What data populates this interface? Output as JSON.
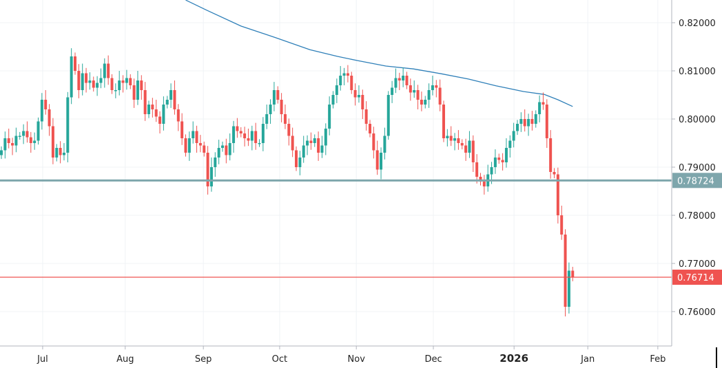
{
  "chart_data": {
    "type": "candlestick",
    "title": "",
    "price_ticks": [
      "0.82000",
      "0.81000",
      "0.80000",
      "0.79000",
      "0.78000",
      "0.77000",
      "0.76000"
    ],
    "price_tick_values": [
      0.82,
      0.81,
      0.8,
      0.79,
      0.78,
      0.77,
      0.76
    ],
    "ylim": [
      0.7535,
      0.8247
    ],
    "time_ticks": [
      {
        "label": "Jul",
        "bar": 11.2,
        "bold": false
      },
      {
        "label": "Aug",
        "bar": 33.6,
        "bold": false
      },
      {
        "label": "Sep",
        "bar": 54.8,
        "bold": false
      },
      {
        "label": "Oct",
        "bar": 75.5,
        "bold": false
      },
      {
        "label": "Nov",
        "bar": 96.3,
        "bold": false
      },
      {
        "label": "Dec",
        "bar": 117.2,
        "bold": false
      },
      {
        "label": "2026",
        "bar": 139.1,
        "bold": true
      },
      {
        "label": "Jan",
        "bar": 159.1,
        "bold": false
      },
      {
        "label": "Feb",
        "bar": 178.1,
        "bold": false
      }
    ],
    "first_open": 0.7925,
    "closes": [
      0.7935,
      0.796,
      0.795,
      0.7945,
      0.7965,
      0.7965,
      0.7975,
      0.7962,
      0.795,
      0.7955,
      0.7995,
      0.804,
      0.802,
      0.7985,
      0.792,
      0.794,
      0.7925,
      0.793,
      0.8045,
      0.813,
      0.81,
      0.806,
      0.8095,
      0.8075,
      0.808,
      0.8065,
      0.8075,
      0.8085,
      0.8115,
      0.8085,
      0.806,
      0.806,
      0.808,
      0.8075,
      0.8085,
      0.807,
      0.804,
      0.808,
      0.806,
      0.801,
      0.803,
      0.802,
      0.8005,
      0.799,
      0.803,
      0.804,
      0.806,
      0.802,
      0.7995,
      0.796,
      0.793,
      0.796,
      0.7975,
      0.795,
      0.7945,
      0.793,
      0.786,
      0.79,
      0.792,
      0.794,
      0.7945,
      0.7925,
      0.795,
      0.7985,
      0.7975,
      0.797,
      0.796,
      0.7955,
      0.7975,
      0.795,
      0.795,
      0.799,
      0.801,
      0.803,
      0.806,
      0.804,
      0.801,
      0.799,
      0.7965,
      0.7935,
      0.79,
      0.792,
      0.7945,
      0.7955,
      0.795,
      0.796,
      0.793,
      0.7945,
      0.798,
      0.803,
      0.805,
      0.807,
      0.809,
      0.8095,
      0.809,
      0.806,
      0.8045,
      0.805,
      0.802,
      0.799,
      0.797,
      0.7935,
      0.7895,
      0.793,
      0.7965,
      0.805,
      0.8065,
      0.8085,
      0.808,
      0.809,
      0.807,
      0.8055,
      0.806,
      0.804,
      0.803,
      0.804,
      0.806,
      0.807,
      0.8065,
      0.803,
      0.796,
      0.7965,
      0.7955,
      0.796,
      0.795,
      0.7945,
      0.793,
      0.7955,
      0.791,
      0.788,
      0.787,
      0.786,
      0.7885,
      0.79,
      0.792,
      0.7915,
      0.791,
      0.794,
      0.7955,
      0.7975,
      0.799,
      0.8,
      0.7985,
      0.8,
      0.799,
      0.801,
      0.8035,
      0.803,
      0.796,
      0.789,
      0.7885,
      0.78,
      0.776,
      0.761,
      0.7685,
      0.7671
    ],
    "moving_average": {
      "color": "#2e7fb8",
      "points": [
        [
          50,
          0.8247
        ],
        [
          55.7,
          0.8226
        ],
        [
          65,
          0.8193
        ],
        [
          74.4,
          0.8169
        ],
        [
          83.7,
          0.8144
        ],
        [
          91.2,
          0.813
        ],
        [
          96.8,
          0.8121
        ],
        [
          104.3,
          0.811
        ],
        [
          111.8,
          0.8104
        ],
        [
          119.3,
          0.8094
        ],
        [
          126.7,
          0.8083
        ],
        [
          134.2,
          0.8069
        ],
        [
          141.7,
          0.8057
        ],
        [
          147.3,
          0.8051
        ],
        [
          151,
          0.804
        ],
        [
          155,
          0.8026
        ]
      ]
    },
    "horizontal_lines": [
      {
        "value": 0.78724,
        "label": "0.78724",
        "color": "#7ea6ac"
      },
      {
        "value": 0.76714,
        "label": "0.76714",
        "color": "#ef5350"
      }
    ],
    "colors": {
      "up": "#26a69a",
      "down": "#ef5350",
      "grid": "#f0f3f6",
      "axis": "#b2b5be"
    },
    "grid": true
  }
}
